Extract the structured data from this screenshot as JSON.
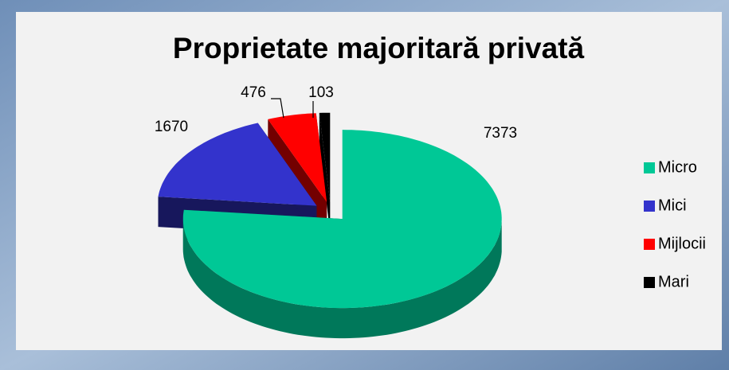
{
  "chart_data": {
    "type": "pie3d",
    "title": "Proprietate majoritară privată",
    "categories": [
      "Micro",
      "Mici",
      "Mijlocii",
      "Mari"
    ],
    "values": [
      7373,
      1670,
      476,
      103
    ],
    "colors": [
      "#00c896",
      "#3333cc",
      "#ff0000",
      "#000000"
    ],
    "legend": "right"
  }
}
